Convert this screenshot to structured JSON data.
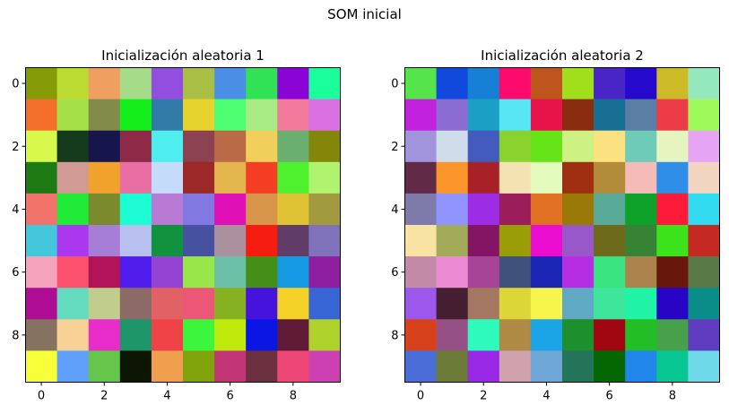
{
  "chart_data": {
    "type": "heatmap",
    "title": "SOM inicial",
    "grid": false,
    "panels": [
      {
        "title": "Inicialización aleatoria 1",
        "x_ticks": [
          "0",
          "2",
          "4",
          "6",
          "8"
        ],
        "y_ticks": [
          "0",
          "2",
          "4",
          "6",
          "8"
        ],
        "xlim": [
          -0.5,
          9.5
        ],
        "ylim": [
          9.5,
          -0.5
        ],
        "cells": [
          [
            "#869b08",
            "#bbdb33",
            "#ef9f5f",
            "#a6db88",
            "#924fdf",
            "#a8be45",
            "#4a8ee6",
            "#31e257",
            "#8a05d5",
            "#1afe9c"
          ],
          [
            "#f4702a",
            "#a4e048",
            "#838b4b",
            "#14ef1c",
            "#327ba8",
            "#e6d32d",
            "#4dfe72",
            "#a9eb84",
            "#f27a9a",
            "#d971e2"
          ],
          [
            "#d8f84b",
            "#163a1c",
            "#17164c",
            "#8c2a47",
            "#4eeeee",
            "#8c4250",
            "#ba6a46",
            "#f0d05a",
            "#6aae70",
            "#848609"
          ],
          [
            "#1d7b14",
            "#d19a95",
            "#f0a22c",
            "#e96ea3",
            "#c4dcfa",
            "#9c2828",
            "#e3b74d",
            "#f53d23",
            "#4ff12f",
            "#aff36f"
          ],
          [
            "#f2736a",
            "#21ea38",
            "#7b8a2c",
            "#1dfdd4",
            "#b97ad6",
            "#8178e2",
            "#df10b6",
            "#d7954c",
            "#dfc335",
            "#a19a3e"
          ],
          [
            "#44c6db",
            "#aa38ee",
            "#a77ed6",
            "#b8c0f0",
            "#10923f",
            "#4651a0",
            "#ab919d",
            "#f61c0f",
            "#5f3d68",
            "#8172bc"
          ],
          [
            "#f5a3bd",
            "#fc516e",
            "#b31459",
            "#511ded",
            "#9443d3",
            "#99e64b",
            "#6cc0a7",
            "#448f18",
            "#159be3",
            "#901fa0"
          ],
          [
            "#b00d96",
            "#63dbbf",
            "#c0cd8d",
            "#8c6a65",
            "#e26164",
            "#ec5677",
            "#86b122",
            "#4513dc",
            "#f3d126",
            "#3765d6"
          ],
          [
            "#857261",
            "#f7d196",
            "#e92dcb",
            "#1f9669",
            "#ef4347",
            "#3cf63d",
            "#bfea0b",
            "#0a16e4",
            "#5f1a36",
            "#aed22b"
          ],
          [
            "#f7ff38",
            "#609ff9",
            "#66c54b",
            "#0c1602",
            "#f09f4f",
            "#80a30b",
            "#c23676",
            "#6c3140",
            "#ee4677",
            "#cd40b2"
          ]
        ]
      },
      {
        "title": "Inicialización aleatoria 2",
        "x_ticks": [
          "0",
          "2",
          "4",
          "6",
          "8"
        ],
        "y_ticks": [
          "0",
          "2",
          "4",
          "6",
          "8"
        ],
        "xlim": [
          -0.5,
          9.5
        ],
        "ylim": [
          9.5,
          -0.5
        ],
        "cells": [
          [
            "#55e449",
            "#1249dd",
            "#1680d6",
            "#fc0b6c",
            "#bd551d",
            "#a1de1c",
            "#4924c7",
            "#2509cd",
            "#cdba27",
            "#95e8bb"
          ],
          [
            "#c221dd",
            "#8b6cd3",
            "#1b9fc4",
            "#57e6f6",
            "#e8134a",
            "#8a2c10",
            "#176f93",
            "#5a7ea4",
            "#ed3b48",
            "#9ef95b"
          ],
          [
            "#a193dc",
            "#cfdcea",
            "#435bbf",
            "#8ad32f",
            "#66e418",
            "#cdf183",
            "#fbe17f",
            "#6dcbb7",
            "#e6f5bf",
            "#e6a5f4"
          ],
          [
            "#612a46",
            "#fb962d",
            "#a72228",
            "#f3e3b2",
            "#e3fcbe",
            "#a02f12",
            "#b28c38",
            "#f4bbb8",
            "#2e8ee8",
            "#f1d5c1"
          ],
          [
            "#7e7aa9",
            "#9194fc",
            "#9c2de5",
            "#9b1d59",
            "#e27124",
            "#9a7909",
            "#59aa98",
            "#0ea22b",
            "#fe1b3a",
            "#32dbef"
          ],
          [
            "#f8e3a4",
            "#a2ab59",
            "#831564",
            "#9a9d08",
            "#ec0ed0",
            "#9958c8",
            "#6e6a1b",
            "#368335",
            "#3de31a",
            "#c42a23"
          ],
          [
            "#c28aa7",
            "#ec8bd3",
            "#a74497",
            "#3e527b",
            "#1a25b4",
            "#b52ee3",
            "#38e380",
            "#ad834d",
            "#67170c",
            "#587845"
          ],
          [
            "#9b58ea",
            "#461e32",
            "#a37761",
            "#ddd638",
            "#f7f54b",
            "#60a8c3",
            "#3ee69b",
            "#20f3a6",
            "#2805c5",
            "#0a8c88"
          ],
          [
            "#d7421c",
            "#955186",
            "#2cfbbb",
            "#ae8a44",
            "#1ba4e6",
            "#1e8f2d",
            "#a00710",
            "#23be25",
            "#47a04a",
            "#5f3cbf"
          ],
          [
            "#4b6dd8",
            "#6b7a37",
            "#9827e6",
            "#d0a2ad",
            "#6ea6d6",
            "#237458",
            "#056604",
            "#2186e9",
            "#07c691",
            "#6ed9e9"
          ]
        ]
      }
    ]
  }
}
